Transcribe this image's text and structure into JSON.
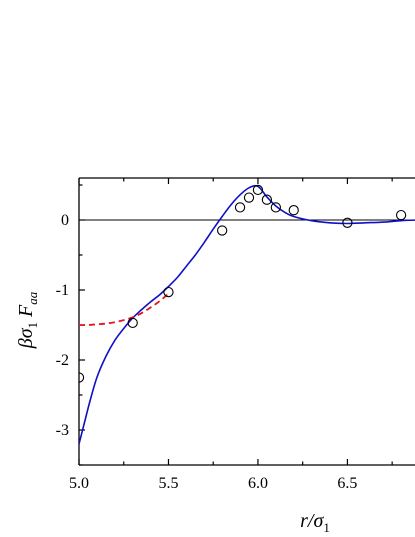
{
  "chart_data": {
    "type": "line",
    "title": "",
    "xlabel": {
      "main": "r/σ",
      "sub": "1"
    },
    "ylabel": {
      "prefix": "βσ",
      "sub1": "1",
      "letter": "F",
      "sub2": "aa"
    },
    "xlim": [
      5.0,
      6.9
    ],
    "ylim": [
      -3.5,
      0.6
    ],
    "x_ticks": [
      5.0,
      5.5,
      6.0,
      6.5
    ],
    "x_tick_labels": [
      "5.0",
      "5.5",
      "6.0",
      "6.5"
    ],
    "y_ticks": [
      -3,
      -2,
      -1,
      0
    ],
    "y_tick_labels": [
      "-3",
      "-2",
      "-1",
      "0"
    ],
    "zero_line": true,
    "grid": false,
    "legend": "none",
    "series": [
      {
        "kind": "solid-line",
        "color": "#1010c8",
        "x": [
          5.0,
          5.03,
          5.06,
          5.1,
          5.15,
          5.2,
          5.25,
          5.3,
          5.35,
          5.4,
          5.45,
          5.5,
          5.55,
          5.6,
          5.65,
          5.7,
          5.75,
          5.8,
          5.85,
          5.9,
          5.95,
          6.0,
          6.05,
          6.1,
          6.15,
          6.2,
          6.3,
          6.4,
          6.5,
          6.6,
          6.7,
          6.8,
          6.9
        ],
        "y": [
          -3.2,
          -2.9,
          -2.6,
          -2.25,
          -1.95,
          -1.72,
          -1.55,
          -1.4,
          -1.28,
          -1.17,
          -1.07,
          -0.95,
          -0.82,
          -0.66,
          -0.5,
          -0.32,
          -0.13,
          0.05,
          0.22,
          0.36,
          0.46,
          0.48,
          0.33,
          0.2,
          0.11,
          0.05,
          -0.01,
          -0.04,
          -0.05,
          -0.04,
          -0.03,
          -0.01,
          0.0
        ]
      },
      {
        "kind": "dashed-line",
        "color": "#e8141e",
        "x": [
          5.0,
          5.05,
          5.1,
          5.15,
          5.2,
          5.25,
          5.3,
          5.35,
          5.4,
          5.45,
          5.5
        ],
        "y": [
          -1.5,
          -1.5,
          -1.49,
          -1.48,
          -1.46,
          -1.43,
          -1.39,
          -1.33,
          -1.25,
          -1.16,
          -1.05
        ]
      },
      {
        "kind": "open-circles",
        "color": "#000000",
        "x": [
          5.0,
          5.3,
          5.5,
          5.8,
          5.9,
          5.95,
          6.0,
          6.05,
          6.1,
          6.2,
          6.5,
          6.8
        ],
        "y": [
          -2.25,
          -1.47,
          -1.03,
          -0.15,
          0.18,
          0.32,
          0.43,
          0.29,
          0.18,
          0.14,
          -0.04,
          0.07
        ]
      }
    ]
  }
}
